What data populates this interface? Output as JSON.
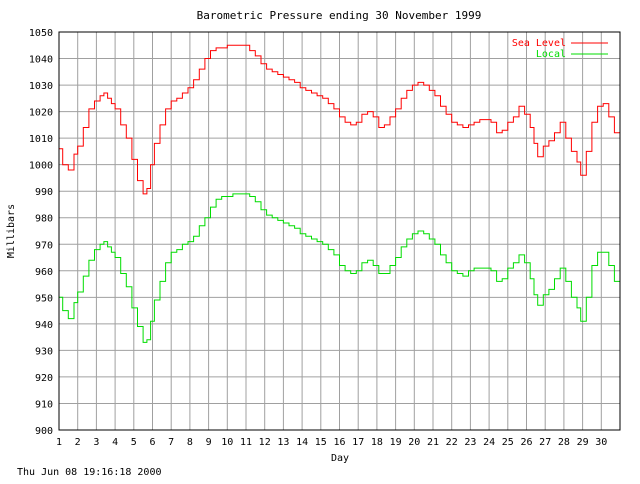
{
  "chart_data": {
    "type": "line",
    "title": "Barometric Pressure ending 30 November 1999",
    "xlabel": "Day",
    "ylabel": "Millibars",
    "footer": "Thu Jun 08 19:16:18 2000",
    "xlim": [
      1,
      31
    ],
    "ylim": [
      900,
      1050
    ],
    "grid": true,
    "legend_position": "top-right",
    "x_ticks": [
      "1",
      "2",
      "3",
      "4",
      "5",
      "6",
      "7",
      "8",
      "9",
      "10",
      "11",
      "12",
      "13",
      "14",
      "15",
      "16",
      "17",
      "18",
      "19",
      "20",
      "21",
      "22",
      "23",
      "24",
      "25",
      "26",
      "27",
      "28",
      "29",
      "30"
    ],
    "y_ticks": [
      "900",
      "910",
      "920",
      "930",
      "940",
      "950",
      "960",
      "970",
      "980",
      "990",
      "1000",
      "1010",
      "1020",
      "1030",
      "1040",
      "1050"
    ],
    "series": [
      {
        "name": "Sea Level",
        "color": "#ff0000",
        "x": [
          1.0,
          1.2,
          1.5,
          1.8,
          2.0,
          2.3,
          2.6,
          2.9,
          3.2,
          3.4,
          3.6,
          3.8,
          4.0,
          4.3,
          4.6,
          4.9,
          5.2,
          5.5,
          5.7,
          5.9,
          6.1,
          6.4,
          6.7,
          7.0,
          7.3,
          7.6,
          7.9,
          8.2,
          8.5,
          8.8,
          9.1,
          9.4,
          9.7,
          10.0,
          10.3,
          10.6,
          10.9,
          11.2,
          11.5,
          11.8,
          12.1,
          12.4,
          12.7,
          13.0,
          13.3,
          13.6,
          13.9,
          14.2,
          14.5,
          14.8,
          15.1,
          15.4,
          15.7,
          16.0,
          16.3,
          16.6,
          16.9,
          17.2,
          17.5,
          17.8,
          18.1,
          18.4,
          18.7,
          19.0,
          19.3,
          19.6,
          19.9,
          20.2,
          20.5,
          20.8,
          21.1,
          21.4,
          21.7,
          22.0,
          22.3,
          22.6,
          22.9,
          23.2,
          23.5,
          23.8,
          24.1,
          24.4,
          24.7,
          25.0,
          25.3,
          25.6,
          25.9,
          26.2,
          26.4,
          26.6,
          26.9,
          27.2,
          27.5,
          27.8,
          28.1,
          28.4,
          28.7,
          28.9,
          29.2,
          29.5,
          29.8,
          30.1,
          30.4,
          30.7,
          31.0
        ],
        "y": [
          1006,
          1000,
          998,
          1004,
          1007,
          1014,
          1021,
          1024,
          1026,
          1027,
          1025,
          1023,
          1021,
          1015,
          1010,
          1002,
          994,
          989,
          991,
          1000,
          1008,
          1015,
          1021,
          1024,
          1025,
          1027,
          1029,
          1032,
          1036,
          1040,
          1043,
          1044,
          1044,
          1045,
          1045,
          1045,
          1045,
          1043,
          1041,
          1038,
          1036,
          1035,
          1034,
          1033,
          1032,
          1031,
          1029,
          1028,
          1027,
          1026,
          1025,
          1023,
          1021,
          1018,
          1016,
          1015,
          1016,
          1019,
          1020,
          1018,
          1014,
          1015,
          1018,
          1021,
          1025,
          1028,
          1030,
          1031,
          1030,
          1028,
          1026,
          1022,
          1019,
          1016,
          1015,
          1014,
          1015,
          1016,
          1017,
          1017,
          1016,
          1012,
          1013,
          1016,
          1018,
          1022,
          1019,
          1014,
          1008,
          1003,
          1007,
          1009,
          1012,
          1016,
          1010,
          1005,
          1001,
          996,
          1005,
          1016,
          1022,
          1023,
          1018,
          1012,
          1012
        ]
      },
      {
        "name": "Local",
        "color": "#00dd00",
        "x": [
          1.0,
          1.2,
          1.5,
          1.8,
          2.0,
          2.3,
          2.6,
          2.9,
          3.2,
          3.4,
          3.6,
          3.8,
          4.0,
          4.3,
          4.6,
          4.9,
          5.2,
          5.5,
          5.7,
          5.9,
          6.1,
          6.4,
          6.7,
          7.0,
          7.3,
          7.6,
          7.9,
          8.2,
          8.5,
          8.8,
          9.1,
          9.4,
          9.7,
          10.0,
          10.3,
          10.6,
          10.9,
          11.2,
          11.5,
          11.8,
          12.1,
          12.4,
          12.7,
          13.0,
          13.3,
          13.6,
          13.9,
          14.2,
          14.5,
          14.8,
          15.1,
          15.4,
          15.7,
          16.0,
          16.3,
          16.6,
          16.9,
          17.2,
          17.5,
          17.8,
          18.1,
          18.4,
          18.7,
          19.0,
          19.3,
          19.6,
          19.9,
          20.2,
          20.5,
          20.8,
          21.1,
          21.4,
          21.7,
          22.0,
          22.3,
          22.6,
          22.9,
          23.2,
          23.5,
          23.8,
          24.1,
          24.4,
          24.7,
          25.0,
          25.3,
          25.6,
          25.9,
          26.2,
          26.4,
          26.6,
          26.9,
          27.2,
          27.5,
          27.8,
          28.1,
          28.4,
          28.7,
          28.9,
          29.2,
          29.5,
          29.8,
          30.1,
          30.4,
          30.7,
          31.0
        ],
        "y": [
          950,
          945,
          942,
          948,
          952,
          958,
          964,
          968,
          970,
          971,
          969,
          967,
          965,
          959,
          954,
          946,
          939,
          933,
          934,
          941,
          949,
          956,
          963,
          967,
          968,
          970,
          971,
          973,
          977,
          980,
          984,
          987,
          988,
          988,
          989,
          989,
          989,
          988,
          986,
          983,
          981,
          980,
          979,
          978,
          977,
          976,
          974,
          973,
          972,
          971,
          970,
          968,
          966,
          962,
          960,
          959,
          960,
          963,
          964,
          962,
          959,
          959,
          962,
          965,
          969,
          972,
          974,
          975,
          974,
          972,
          970,
          966,
          963,
          960,
          959,
          958,
          960,
          961,
          961,
          961,
          960,
          956,
          957,
          961,
          963,
          966,
          963,
          957,
          951,
          947,
          951,
          953,
          957,
          961,
          956,
          950,
          946,
          941,
          950,
          962,
          967,
          967,
          962,
          956,
          957
        ]
      }
    ]
  }
}
